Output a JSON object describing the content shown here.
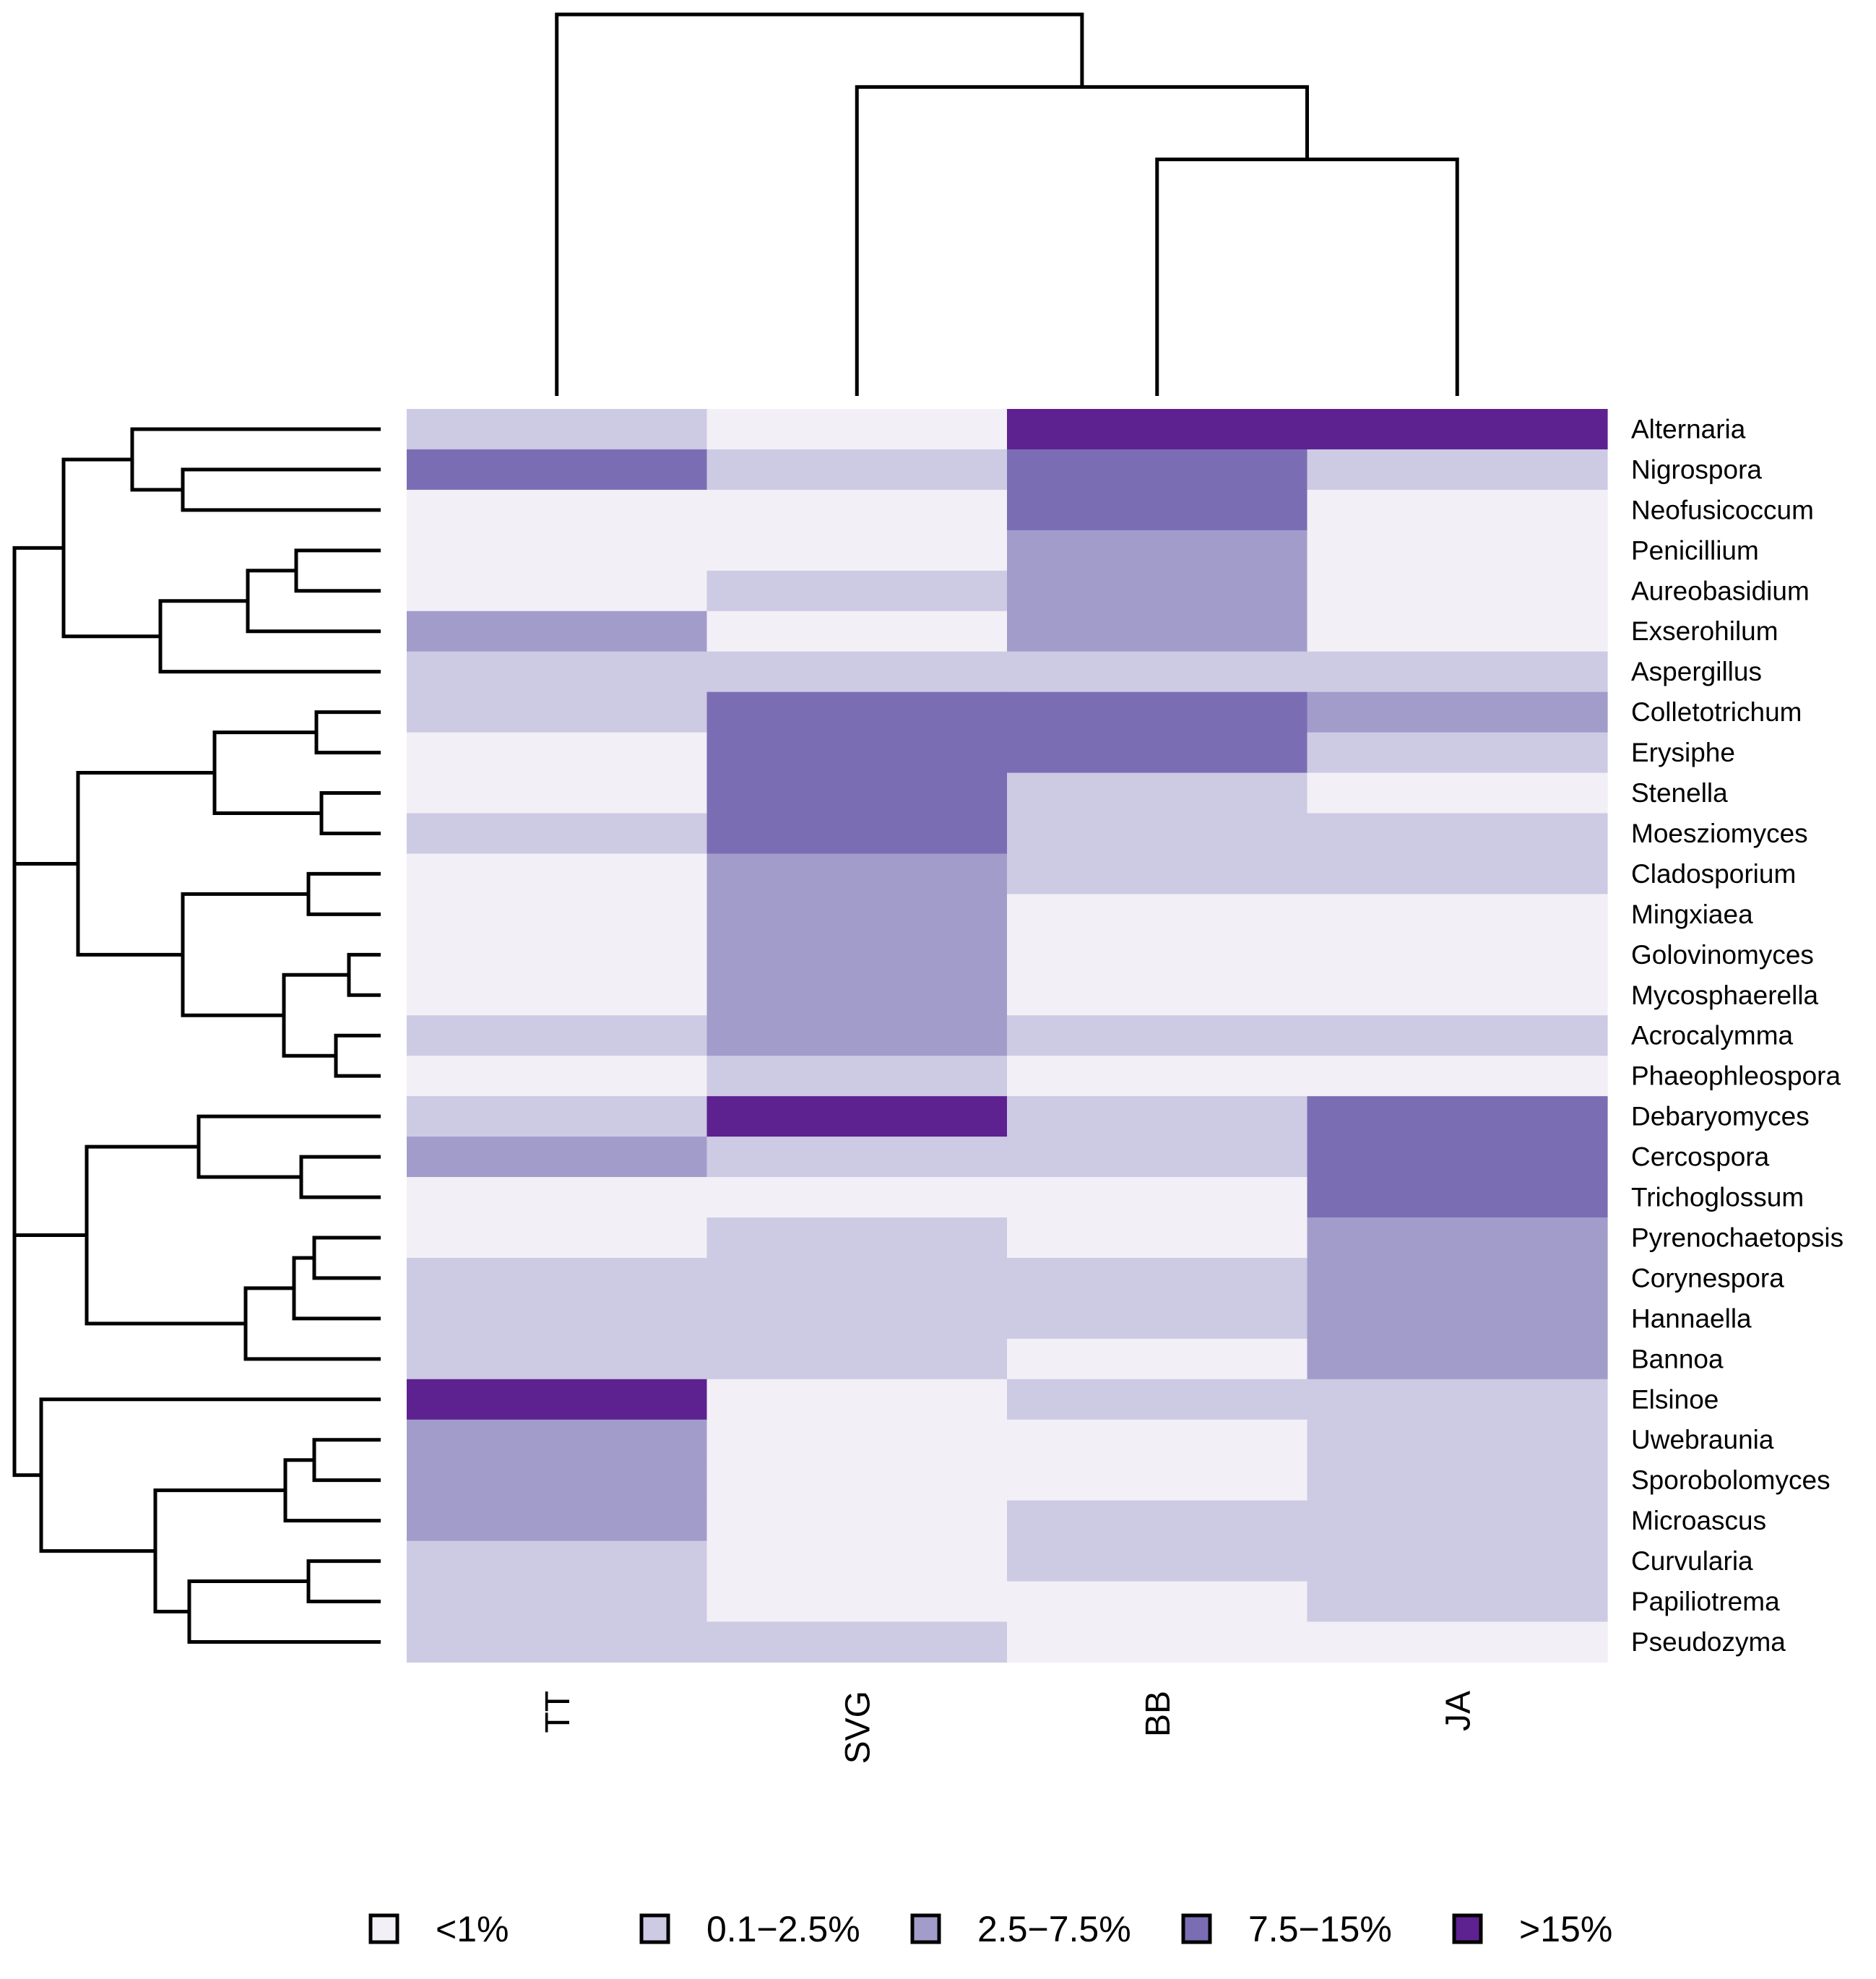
{
  "chart_data": {
    "type": "heatmap",
    "title": "",
    "columns": [
      "TT",
      "SVG",
      "BB",
      "JA"
    ],
    "rows": [
      "Alternaria",
      "Nigrospora",
      "Neofusicoccum",
      "Penicillium",
      "Aureobasidium",
      "Exserohilum",
      "Aspergillus",
      "Colletotrichum",
      "Erysiphe",
      "Stenella",
      "Moesziomyces",
      "Cladosporium",
      "Mingxiaea",
      "Golovinomyces",
      "Mycosphaerella",
      "Acrocalymma",
      "Phaeophleospora",
      "Debaryomyces",
      "Cercospora",
      "Trichoglossum",
      "Pyrenochaetopsis",
      "Corynespora",
      "Hannaella",
      "Bannoa",
      "Elsinoe",
      "Uwebraunia",
      "Sporobolomyces",
      "Microascus",
      "Curvularia",
      "Papiliotrema",
      "Pseudozyma"
    ],
    "categories": [
      "<1%",
      "0.1−2.5%",
      "2.5−7.5%",
      "7.5−15%",
      ">15%"
    ],
    "category_colors": [
      "#f2eff6",
      "#cdcae4",
      "#a29ccb",
      "#7b6db4",
      "#5e2190"
    ],
    "values": [
      [
        1,
        0,
        4,
        4
      ],
      [
        3,
        1,
        3,
        1
      ],
      [
        0,
        0,
        3,
        0
      ],
      [
        0,
        0,
        2,
        0
      ],
      [
        0,
        1,
        2,
        0
      ],
      [
        2,
        0,
        2,
        0
      ],
      [
        1,
        1,
        1,
        1
      ],
      [
        1,
        3,
        3,
        2
      ],
      [
        0,
        3,
        3,
        1
      ],
      [
        0,
        3,
        1,
        0
      ],
      [
        1,
        3,
        1,
        1
      ],
      [
        0,
        2,
        1,
        1
      ],
      [
        0,
        2,
        0,
        0
      ],
      [
        0,
        2,
        0,
        0
      ],
      [
        0,
        2,
        0,
        0
      ],
      [
        1,
        2,
        1,
        1
      ],
      [
        0,
        1,
        0,
        0
      ],
      [
        1,
        4,
        1,
        3
      ],
      [
        2,
        1,
        1,
        3
      ],
      [
        0,
        0,
        0,
        3
      ],
      [
        0,
        1,
        0,
        2
      ],
      [
        1,
        1,
        1,
        2
      ],
      [
        1,
        1,
        1,
        2
      ],
      [
        1,
        1,
        0,
        2
      ],
      [
        4,
        0,
        1,
        1
      ],
      [
        2,
        0,
        0,
        1
      ],
      [
        2,
        0,
        0,
        1
      ],
      [
        2,
        0,
        1,
        1
      ],
      [
        1,
        0,
        1,
        1
      ],
      [
        1,
        0,
        0,
        1
      ],
      [
        1,
        1,
        0,
        0
      ]
    ],
    "column_dendrogram": [
      {
        "merge": [
          2,
          3
        ],
        "height": 0.62
      },
      {
        "merge": [
          1,
          "BB+JA"
        ],
        "height": 0.81
      },
      {
        "merge": [
          0,
          "SVG+BB+JA"
        ],
        "height": 1.0
      }
    ],
    "row_dendrogram": "hierarchical clustering of the 31 genera (drawn on left)",
    "legend_position": "bottom"
  }
}
